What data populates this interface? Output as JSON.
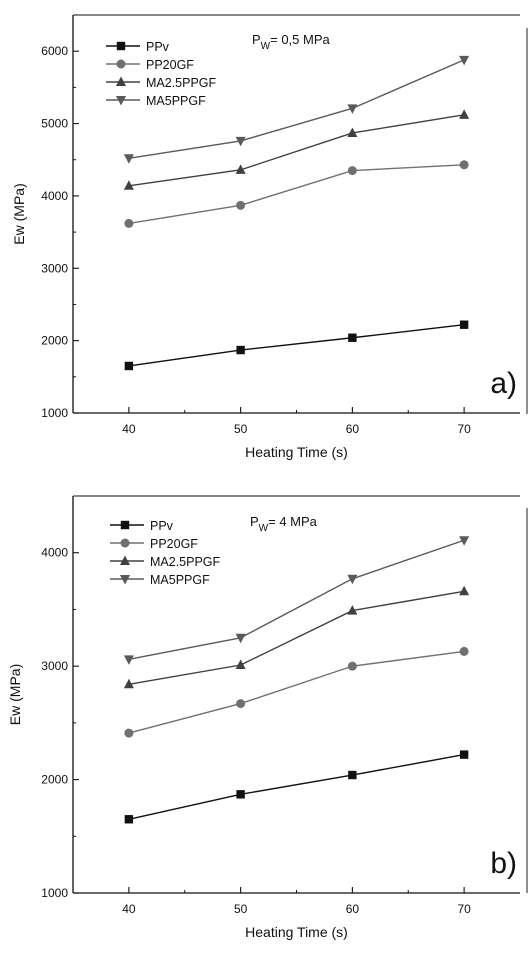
{
  "chart_data": [
    {
      "type": "line",
      "panel_label": "a)",
      "annotation": {
        "main": "P",
        "sub": "W",
        "rest": "= 0,5 MPa"
      },
      "xlabel": "Heating Time (s)",
      "ylabel": "Ew (MPa)",
      "xlim": [
        35,
        75
      ],
      "ylim": [
        1000,
        6500
      ],
      "xticks": [
        40,
        50,
        60,
        70
      ],
      "yticks": [
        1000,
        2000,
        3000,
        4000,
        5000,
        6000
      ],
      "x": [
        40,
        50,
        60,
        70
      ],
      "legend_position": "top-left",
      "series": [
        {
          "name": "PPv",
          "marker": "square",
          "color": "#111111",
          "values": [
            1650,
            1870,
            2040,
            2220
          ]
        },
        {
          "name": "PP20GF",
          "marker": "circle",
          "color": "#707070",
          "values": [
            3620,
            3870,
            4350,
            4430
          ]
        },
        {
          "name": "MA2.5PPGF",
          "marker": "triangle-up",
          "color": "#404040",
          "values": [
            4140,
            4360,
            4870,
            5120
          ]
        },
        {
          "name": "MA5PPGF",
          "marker": "triangle-down",
          "color": "#5a5a5a",
          "values": [
            4520,
            4760,
            5210,
            5880
          ]
        }
      ]
    },
    {
      "type": "line",
      "panel_label": "b)",
      "annotation": {
        "main": "P",
        "sub": "W",
        "rest": "= 4 MPa"
      },
      "xlabel": "Heating Time (s)",
      "ylabel": "Ew (MPa)",
      "xlim": [
        35,
        75
      ],
      "ylim": [
        1000,
        4500
      ],
      "xticks": [
        40,
        50,
        60,
        70
      ],
      "yticks": [
        1000,
        2000,
        3000,
        4000
      ],
      "x": [
        40,
        50,
        60,
        70
      ],
      "legend_position": "top-left",
      "series": [
        {
          "name": "PPv",
          "marker": "square",
          "color": "#111111",
          "values": [
            1650,
            1870,
            2040,
            2220
          ]
        },
        {
          "name": "PP20GF",
          "marker": "circle",
          "color": "#707070",
          "values": [
            2410,
            2670,
            3000,
            3130
          ]
        },
        {
          "name": "MA2.5PPGF",
          "marker": "triangle-up",
          "color": "#404040",
          "values": [
            2840,
            3010,
            3490,
            3660
          ]
        },
        {
          "name": "MA5PPGF",
          "marker": "triangle-down",
          "color": "#5a5a5a",
          "values": [
            3060,
            3250,
            3770,
            4110
          ]
        }
      ]
    }
  ]
}
